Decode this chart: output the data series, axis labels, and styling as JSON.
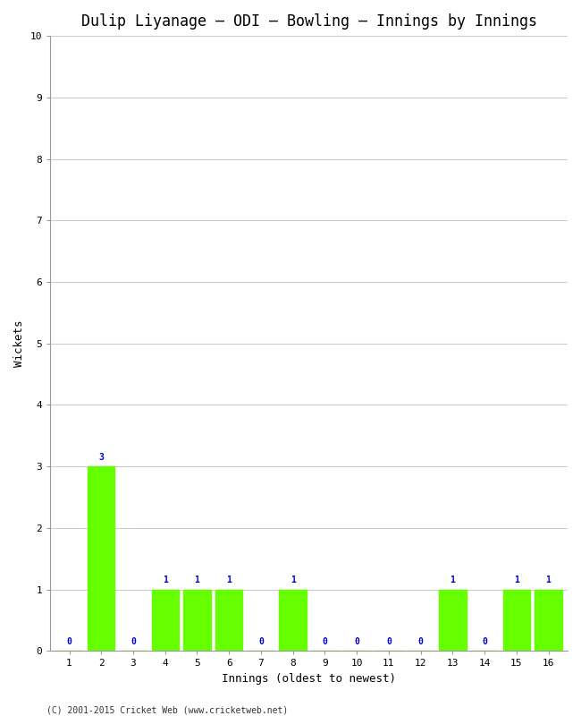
{
  "title": "Dulip Liyanage – ODI – Bowling – Innings by Innings",
  "xlabel": "Innings (oldest to newest)",
  "ylabel": "Wickets",
  "categories": [
    "1",
    "2",
    "3",
    "4",
    "5",
    "6",
    "7",
    "8",
    "9",
    "10",
    "11",
    "12",
    "13",
    "14",
    "15",
    "16"
  ],
  "values": [
    0,
    3,
    0,
    1,
    1,
    1,
    0,
    1,
    0,
    0,
    0,
    0,
    1,
    0,
    1,
    1
  ],
  "bar_color": "#66ff00",
  "bar_edge_color": "#66ff00",
  "label_color": "#0000cc",
  "ylim": [
    0,
    10
  ],
  "yticks": [
    0,
    1,
    2,
    3,
    4,
    5,
    6,
    7,
    8,
    9,
    10
  ],
  "background_color": "#ffffff",
  "plot_bg_color": "#ffffff",
  "grid_color": "#cccccc",
  "title_fontsize": 12,
  "axis_label_fontsize": 9,
  "tick_fontsize": 8,
  "value_label_fontsize": 7,
  "footer": "(C) 2001-2015 Cricket Web (www.cricketweb.net)",
  "footer_fontsize": 7,
  "bar_width": 0.85
}
